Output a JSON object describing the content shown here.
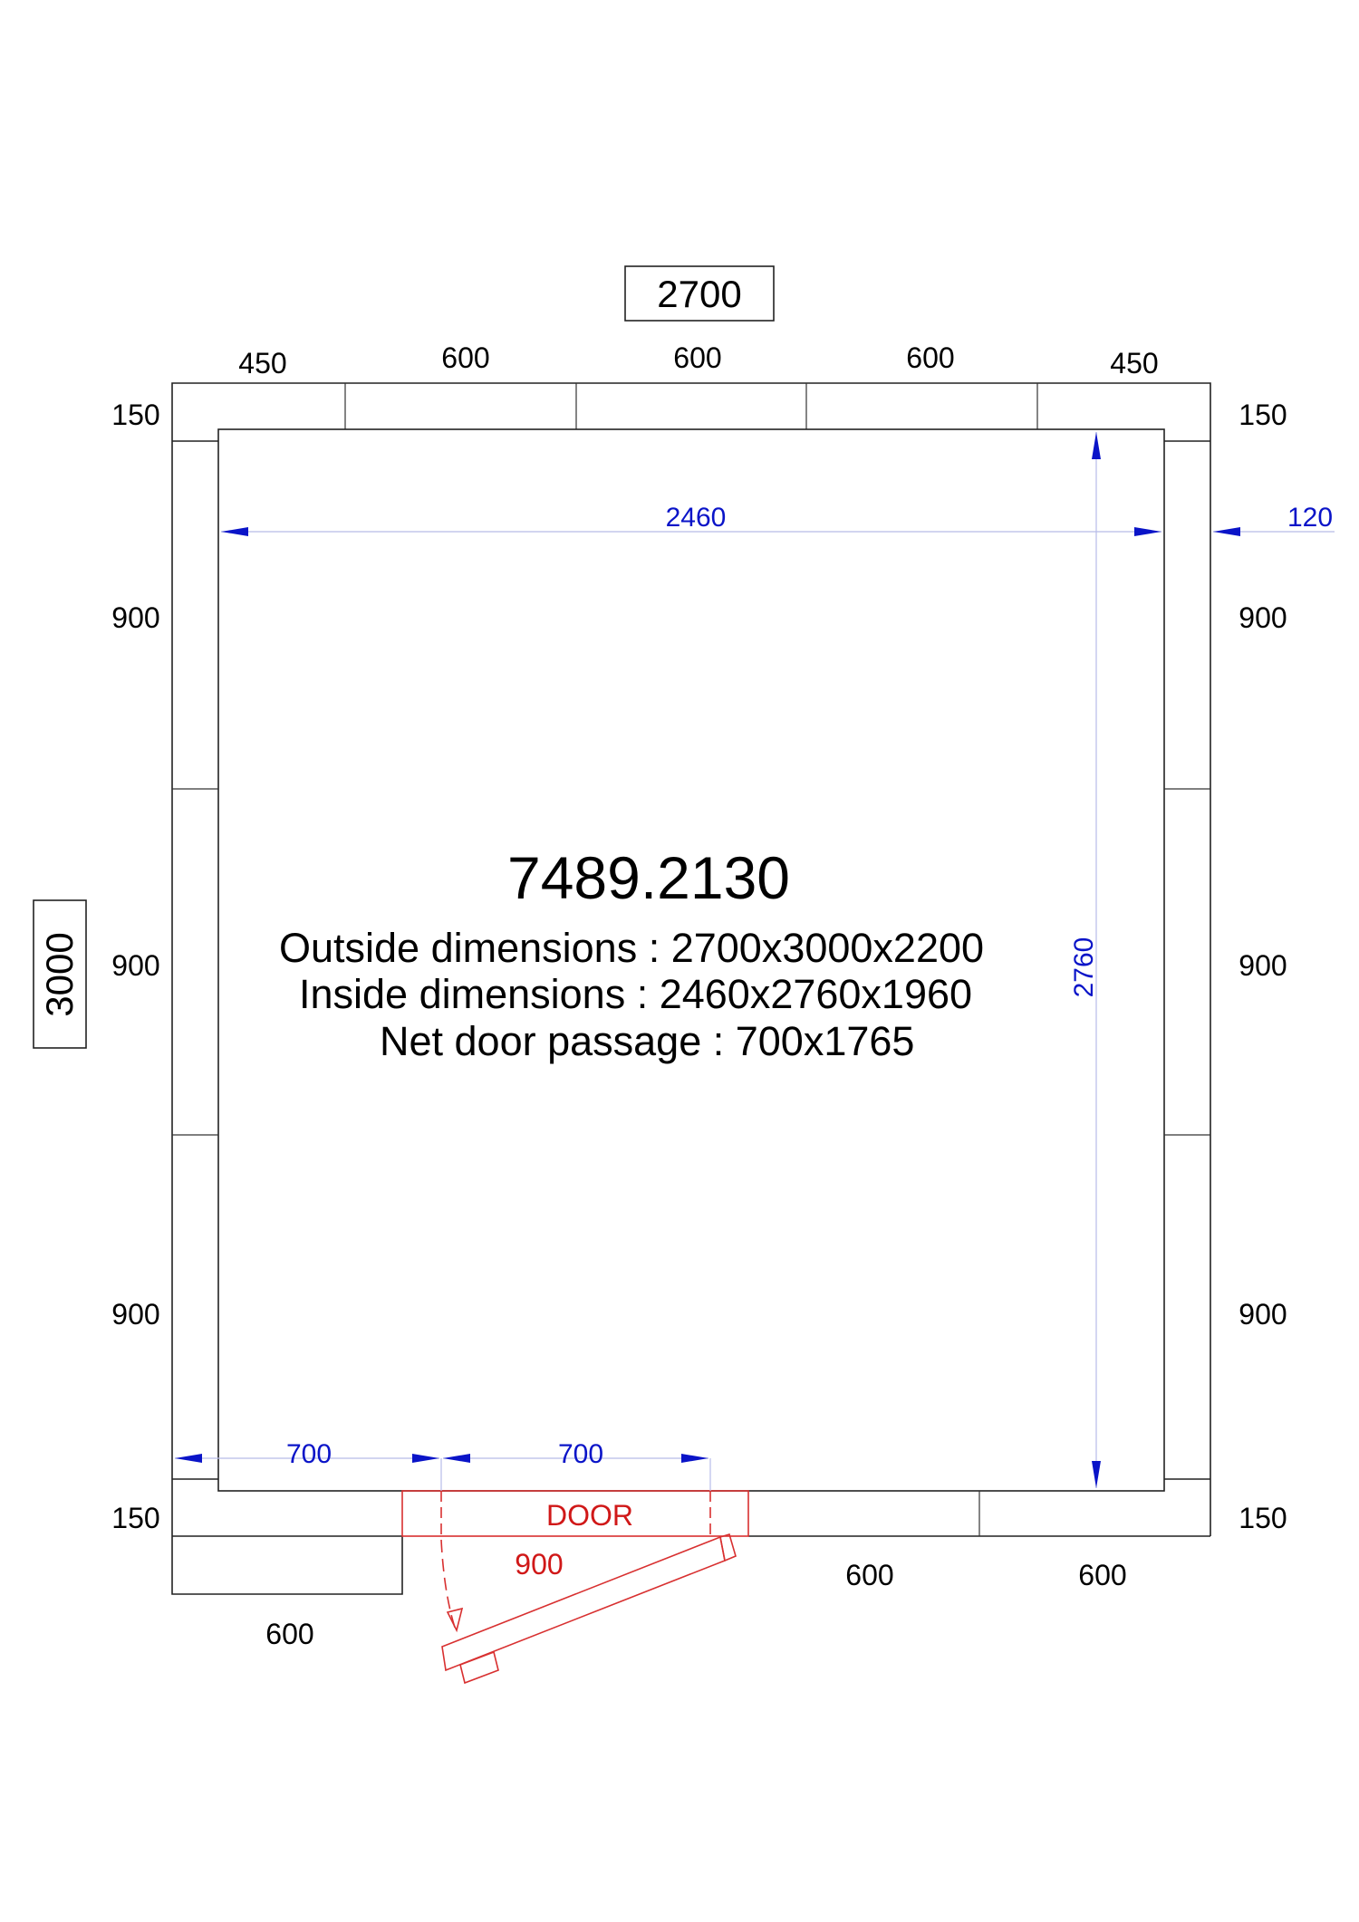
{
  "overall": {
    "width": "2700",
    "depth": "3000"
  },
  "top_panels": [
    "450",
    "600",
    "600",
    "600",
    "450"
  ],
  "corner_labels": {
    "top_left": "150",
    "top_right": "150",
    "bottom_left": "150",
    "bottom_right": "150"
  },
  "side_panels_left": [
    "900",
    "900",
    "900"
  ],
  "side_panels_right": [
    "900",
    "900",
    "900"
  ],
  "bottom_panels": {
    "left_extension": "600",
    "right": [
      "600",
      "600"
    ]
  },
  "inner_dims": {
    "width": "2460",
    "depth": "2760",
    "wall": "120"
  },
  "door": {
    "label": "DOOR",
    "width": "900",
    "offset": "700",
    "passage": "700"
  },
  "info": {
    "code": "7489.2130",
    "outside": "Outside dimensions : 2700x3000x2200",
    "inside": "Inside dimensions :  2460x2760x1960",
    "door_passage": "Net door passage : 700x1765"
  },
  "colors": {
    "lines": "#222222",
    "dimensions": "#0a14c8",
    "door": "#d01818"
  }
}
